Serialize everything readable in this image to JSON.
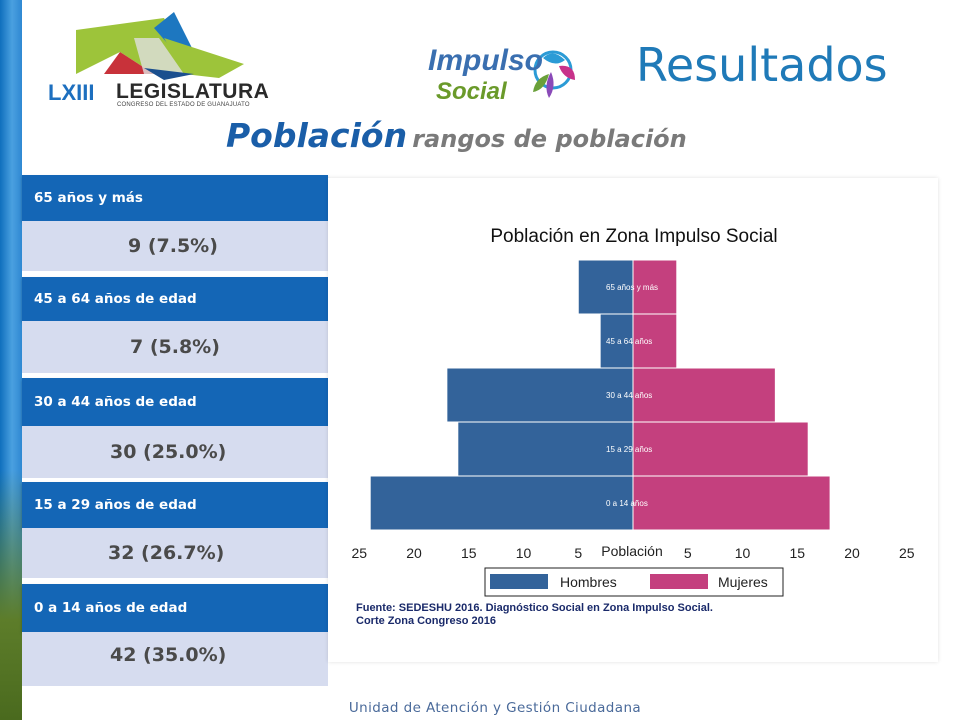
{
  "header": {
    "logo_legislatura_number": "LXIII",
    "logo_legislatura_name": "LEGISLATURA",
    "logo_legislatura_sub": "CONGRESO DEL ESTADO DE GUANAJUATO",
    "logo_impulso_word1": "Impulso",
    "logo_impulso_word2": "Social",
    "title": "Resultados"
  },
  "subtitle": {
    "main": "Población",
    "secondary": "rangos de población"
  },
  "panels": [
    {
      "label": "65 años y más",
      "value": "9 (7.5%)"
    },
    {
      "label": "45 a 64 años de edad",
      "value": "7 (5.8%)"
    },
    {
      "label": "30 a 44 años de edad",
      "value": "30 (25.0%)"
    },
    {
      "label": "15 a 29 años de edad",
      "value": "32 (26.7%)"
    },
    {
      "label": "0 a 14 años de edad",
      "value": "42 (35.0%)"
    }
  ],
  "chart_data": {
    "type": "bar",
    "orientation": "horizontal-pyramid",
    "title": "Población en Zona Impulso Social",
    "xlabel": "Población",
    "xlim": [
      -25,
      25
    ],
    "x_ticks": [
      "25",
      "20",
      "15",
      "10",
      "5",
      "5",
      "10",
      "15",
      "20",
      "25"
    ],
    "categories": [
      "0 a 14 años",
      "15 a 29 años",
      "30 a 44 años",
      "45 a 64 años",
      "65 años y más"
    ],
    "series": [
      {
        "name": "Hombres",
        "values": [
          24,
          16,
          17,
          3,
          5
        ]
      },
      {
        "name": "Mujeres",
        "values": [
          18,
          16,
          13,
          4,
          4
        ]
      }
    ],
    "colors": {
      "Hombres": "#33639a",
      "Mujeres": "#c4407e"
    },
    "legend": "bottom",
    "source": "Fuente: SEDESHU 2016. Diagnóstico Social en Zona Impulso Social.",
    "source2": "Corte Zona Congreso 2016"
  },
  "footer": "Unidad de Atención y Gestión Ciudadana"
}
